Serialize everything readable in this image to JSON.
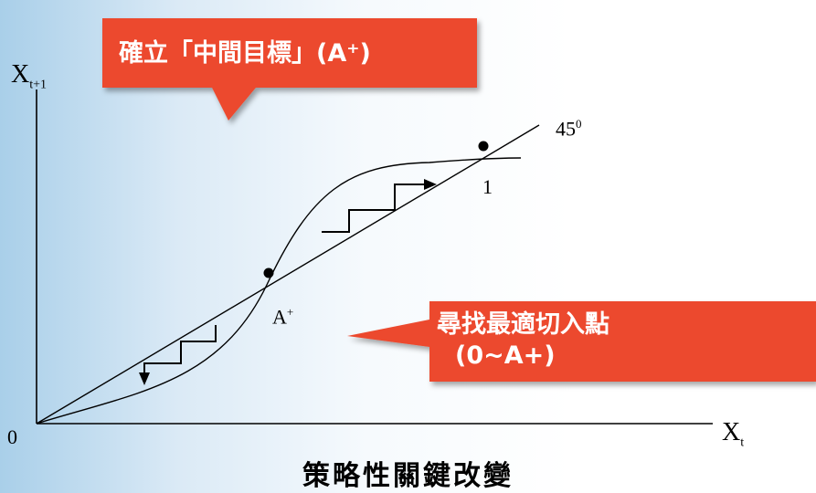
{
  "axes": {
    "y_label": "X",
    "y_subscript": "t+1",
    "x_label": "X",
    "x_subscript": "t",
    "origin_label": "0"
  },
  "diagonal_label": {
    "text": "45",
    "superscript": "0"
  },
  "points": {
    "upper_fixed_label": "1",
    "middle_fixed_label": "A",
    "middle_fixed_superscript": "+"
  },
  "callouts": {
    "top": {
      "text": "確立「中間目標」(A⁺)"
    },
    "right": {
      "line1": "尋找最適切入點",
      "line2": "(0~A+)"
    }
  },
  "caption": "策略性關鍵改變",
  "colors": {
    "callout": "#ec4a2f",
    "line": "#000000"
  }
}
